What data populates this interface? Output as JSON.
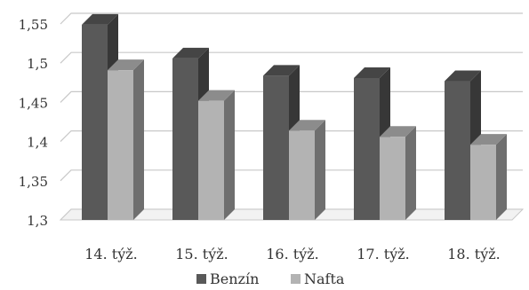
{
  "chart_data": {
    "type": "bar",
    "categories": [
      "14. týž.",
      "15. týž.",
      "16. týž.",
      "17. týž.",
      "18. týž."
    ],
    "series": [
      {
        "name": "Benzín",
        "values": [
          1.549,
          1.506,
          1.484,
          1.481,
          1.477
        ],
        "color": "#595959"
      },
      {
        "name": "Nafta",
        "values": [
          1.491,
          1.452,
          1.414,
          1.406,
          1.396
        ],
        "color": "#b3b3b3"
      }
    ],
    "yticks": [
      "1,3",
      "1,35",
      "1,4",
      "1,45",
      "1,5",
      "1,55"
    ],
    "ylim": [
      1.3,
      1.55
    ],
    "grid": true,
    "legend_position": "bottom",
    "style": "3d-column"
  }
}
